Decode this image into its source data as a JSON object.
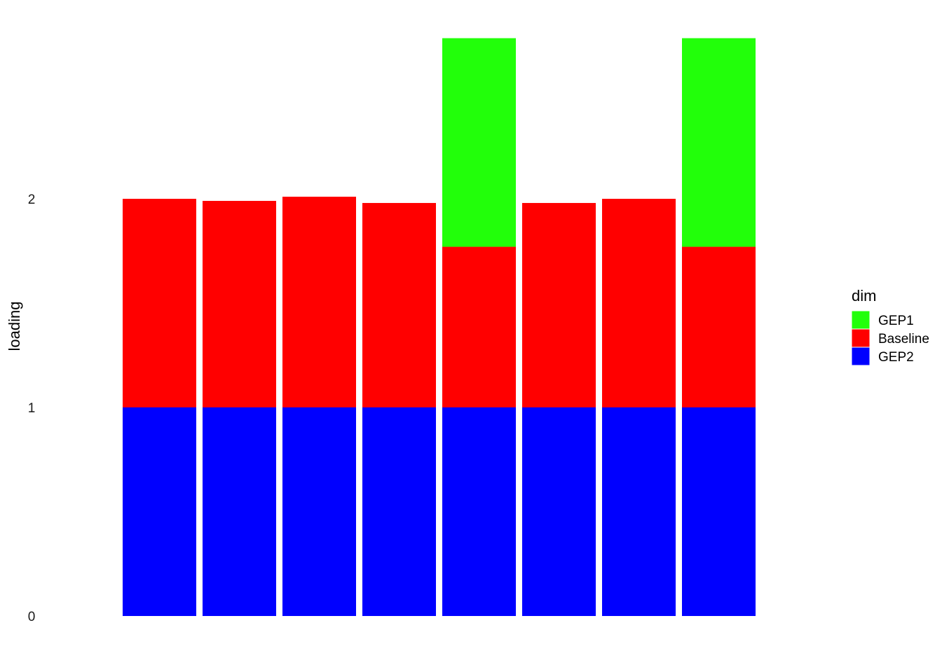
{
  "chart_data": {
    "type": "bar",
    "stacked": true,
    "title": "",
    "xlabel": "",
    "ylabel": "loading",
    "ylim": [
      0,
      2.78
    ],
    "yticks": [
      0,
      1,
      2
    ],
    "categories": [
      "",
      "",
      "",
      "",
      "",
      "",
      "",
      ""
    ],
    "grid": false,
    "legend": {
      "title": "dim",
      "position": "right"
    },
    "series": [
      {
        "name": "GEP2",
        "color": "#0000ff",
        "values": [
          1.0,
          1.0,
          1.0,
          1.0,
          1.0,
          1.0,
          1.0,
          1.0
        ]
      },
      {
        "name": "Baseline",
        "color": "#ff0000",
        "values": [
          1.0,
          0.99,
          1.01,
          0.98,
          0.77,
          0.98,
          1.0,
          0.77
        ]
      },
      {
        "name": "GEP1",
        "color": "#22ff0a",
        "values": [
          0,
          0,
          0,
          0,
          1.0,
          0,
          0,
          1.0
        ]
      }
    ],
    "legend_order": [
      "GEP1",
      "Baseline",
      "GEP2"
    ]
  }
}
